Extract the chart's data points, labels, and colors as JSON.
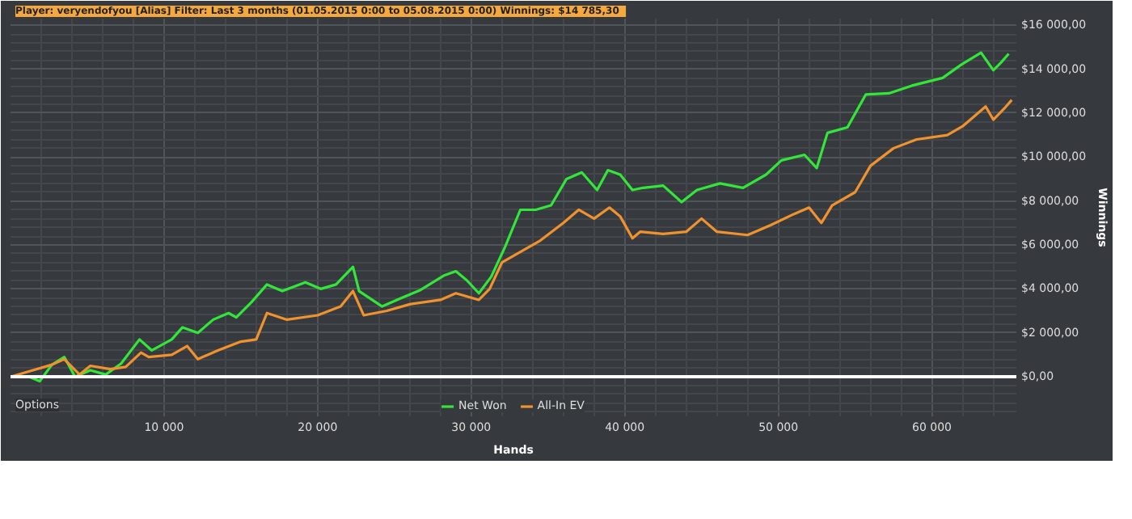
{
  "chart_data": {
    "type": "line",
    "title": "Player: veryendofyou [Alias]  Filter: Last 3 months (01.05.2015 0:00 to 05.08.2015 0:00)  Winnings: $14 785,30",
    "xlabel": "Hands",
    "ylabel": "Winnings",
    "annotations": [
      "Options"
    ],
    "xlim": [
      0,
      65500
    ],
    "ylim": [
      -1800,
      16300
    ],
    "xticks": [
      {
        "value": 10000,
        "label": "10 000"
      },
      {
        "value": 20000,
        "label": "20 000"
      },
      {
        "value": 30000,
        "label": "30 000"
      },
      {
        "value": 40000,
        "label": "40 000"
      },
      {
        "value": 50000,
        "label": "50 000"
      },
      {
        "value": 60000,
        "label": "60 000"
      }
    ],
    "yticks": [
      {
        "value": 0,
        "label": "$0,00"
      },
      {
        "value": 2000,
        "label": "$2 000,00"
      },
      {
        "value": 4000,
        "label": "$4 000,00"
      },
      {
        "value": 6000,
        "label": "$6 000,00"
      },
      {
        "value": 8000,
        "label": "$8 000,00"
      },
      {
        "value": 10000,
        "label": "$10 000,00"
      },
      {
        "value": 12000,
        "label": "$12 000,00"
      },
      {
        "value": 14000,
        "label": "$14 000,00"
      },
      {
        "value": 16000,
        "label": "$16 000,00"
      }
    ],
    "grid": true,
    "legend": "bottom",
    "line_style": "solid",
    "ref_lines": [
      {
        "axis": "y",
        "value": 0,
        "color": "#ffffff"
      }
    ],
    "series": [
      {
        "name": "Net Won",
        "color": "#33e63a",
        "x": [
          0,
          1200,
          1900,
          2700,
          3500,
          4200,
          5200,
          6200,
          7200,
          8400,
          9200,
          10500,
          11200,
          12200,
          13200,
          14200,
          14700,
          15700,
          16700,
          17700,
          19200,
          20200,
          21200,
          22300,
          22700,
          24200,
          25500,
          26700,
          28200,
          29000,
          29700,
          30500,
          31300,
          32200,
          33200,
          34200,
          35200,
          36200,
          37200,
          38200,
          38900,
          39700,
          40500,
          41200,
          42500,
          43700,
          44700,
          46200,
          47700,
          49200,
          50200,
          51700,
          52500,
          53200,
          54500,
          55700,
          57200,
          58700,
          60700,
          61900,
          63200,
          64000,
          64500,
          65000
        ],
        "values": [
          0,
          0,
          -200,
          550,
          900,
          0,
          300,
          100,
          600,
          1700,
          1200,
          1700,
          2250,
          2000,
          2600,
          2900,
          2700,
          3400,
          4200,
          3900,
          4300,
          4000,
          4200,
          5000,
          3900,
          3200,
          3600,
          3950,
          4600,
          4800,
          4400,
          3800,
          4550,
          5900,
          7600,
          7600,
          7800,
          9000,
          9300,
          8500,
          9400,
          9200,
          8500,
          8600,
          8700,
          7950,
          8500,
          8800,
          8600,
          9200,
          9850,
          10100,
          9500,
          11100,
          11350,
          12850,
          12900,
          13250,
          13600,
          14200,
          14750,
          13950,
          14300,
          14700
        ]
      },
      {
        "name": "All-In EV",
        "color": "#f0922e",
        "x": [
          0,
          2700,
          3500,
          4500,
          5200,
          6500,
          7500,
          8500,
          9000,
          10500,
          11500,
          12200,
          13500,
          15000,
          16000,
          16700,
          18000,
          20000,
          21500,
          22300,
          23000,
          24500,
          26000,
          28000,
          29000,
          30500,
          31200,
          32000,
          33500,
          34500,
          36000,
          37000,
          38000,
          39000,
          39700,
          40500,
          41000,
          42500,
          44000,
          45000,
          46000,
          48000,
          49500,
          51000,
          52000,
          52800,
          53500,
          55000,
          56000,
          57500,
          59000,
          61000,
          62000,
          63500,
          64000,
          64700,
          65200
        ],
        "values": [
          0,
          550,
          800,
          100,
          500,
          350,
          450,
          1100,
          900,
          1000,
          1400,
          800,
          1200,
          1600,
          1700,
          2900,
          2600,
          2800,
          3200,
          3900,
          2800,
          3000,
          3300,
          3500,
          3800,
          3500,
          4000,
          5200,
          5800,
          6200,
          7000,
          7600,
          7200,
          7700,
          7300,
          6300,
          6600,
          6500,
          6600,
          7200,
          6600,
          6450,
          6900,
          7400,
          7700,
          7000,
          7800,
          8400,
          9600,
          10400,
          10800,
          11000,
          11400,
          12300,
          11700,
          12200,
          12600
        ]
      }
    ]
  }
}
